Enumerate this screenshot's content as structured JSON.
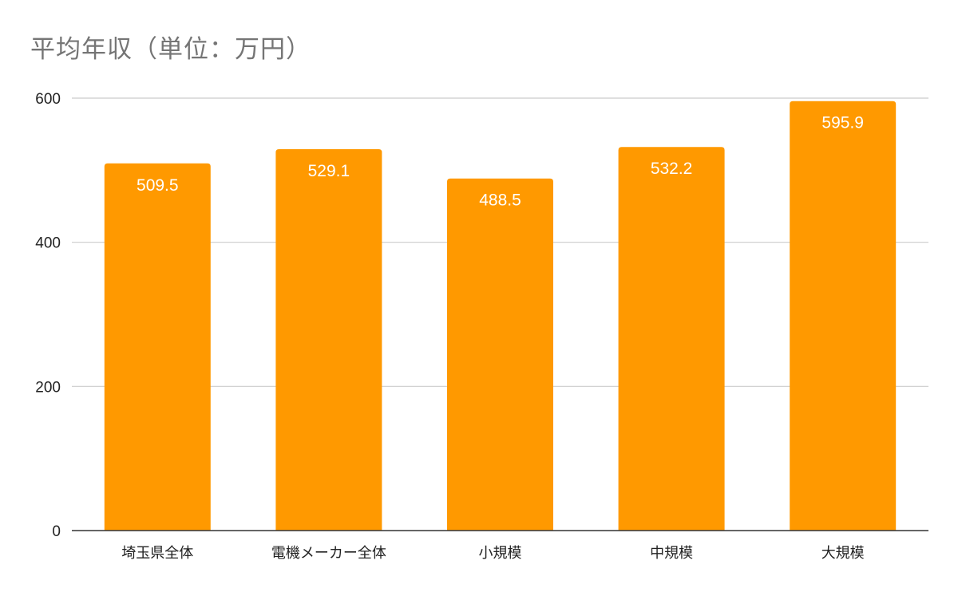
{
  "chart_data": {
    "type": "bar",
    "title": "平均年収（単位：万円）",
    "categories": [
      "埼玉県全体",
      "電機メーカー全体",
      "小規模",
      "中規模",
      "大規模"
    ],
    "values": [
      509.5,
      529.1,
      488.5,
      532.2,
      595.9
    ],
    "data_labels": [
      "509.5",
      "529.1",
      "488.5",
      "532.2",
      "595.9"
    ],
    "yticks": [
      0,
      200,
      400,
      600
    ],
    "ylim": [
      0,
      600
    ],
    "xlabel": "",
    "ylabel": "",
    "grid": true,
    "legend": "none",
    "colors": {
      "bar": "#ff9900",
      "grid": "#cccccc",
      "axis": "#333333"
    }
  }
}
